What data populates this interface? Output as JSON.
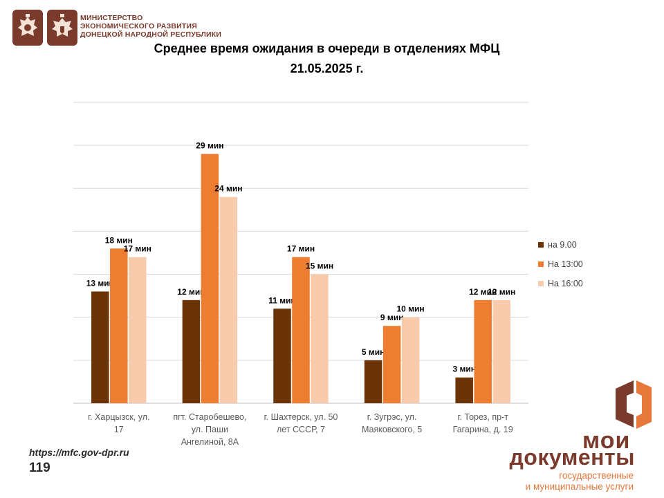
{
  "header": {
    "ministry_lines": [
      "МИНИСТЕРСТВО",
      "ЭКОНОМИЧЕСКОГО РАЗВИТИЯ",
      "ДОНЕЦКОЙ НАРОДНОЙ РЕСПУБЛИКИ"
    ]
  },
  "colors": {
    "brand": "#7a3a2c",
    "accent": "#e6783a",
    "series_9": "#6b3407",
    "series_13": "#ed7d31",
    "series_16": "#f8cbad"
  },
  "chart_data": {
    "type": "bar",
    "title": "Среднее время ожидания в очереди в отделениях МФЦ",
    "subtitle": "21.05.2025   г.",
    "categories": [
      [
        "г. Харцызск, ул.",
        "17"
      ],
      [
        "пгт. Старобешево,",
        "ул. Паши",
        "Ангелиной, 8А"
      ],
      [
        "г. Шахтерск, ул. 50",
        "лет СССР, 7"
      ],
      [
        "г. Зугрэс, ул.",
        "Маяковского, 5"
      ],
      [
        "г. Торез, пр-т",
        "Гагарина, д. 19"
      ]
    ],
    "series": [
      {
        "name": "на 9.00",
        "values": [
          13,
          12,
          11,
          5,
          3
        ],
        "labels": [
          "13 мин",
          "12 мин",
          "11 мин",
          "5 мин",
          "3 мин"
        ],
        "color": "#6b3407"
      },
      {
        "name": "На 13:00",
        "values": [
          18,
          29,
          17,
          9,
          12
        ],
        "labels": [
          "18 мин",
          "29 мин",
          "17 мин",
          "9 мин",
          "12 мин"
        ],
        "color": "#ed7d31"
      },
      {
        "name": "На 16:00",
        "values": [
          17,
          24,
          15,
          10,
          12
        ],
        "labels": [
          "17 мин",
          "24 мин",
          "15 мин",
          "10 мин",
          "12 мин"
        ],
        "color": "#f8cbad"
      }
    ],
    "ylim": [
      0,
      35
    ],
    "grid": true,
    "legend": "right"
  },
  "footer": {
    "url": "https://mfc.gov-dpr.ru",
    "page_number": "119"
  },
  "brand": {
    "line1": "мои",
    "line2": "документы",
    "line3": "государственные",
    "line4": "и муниципальные услуги"
  }
}
